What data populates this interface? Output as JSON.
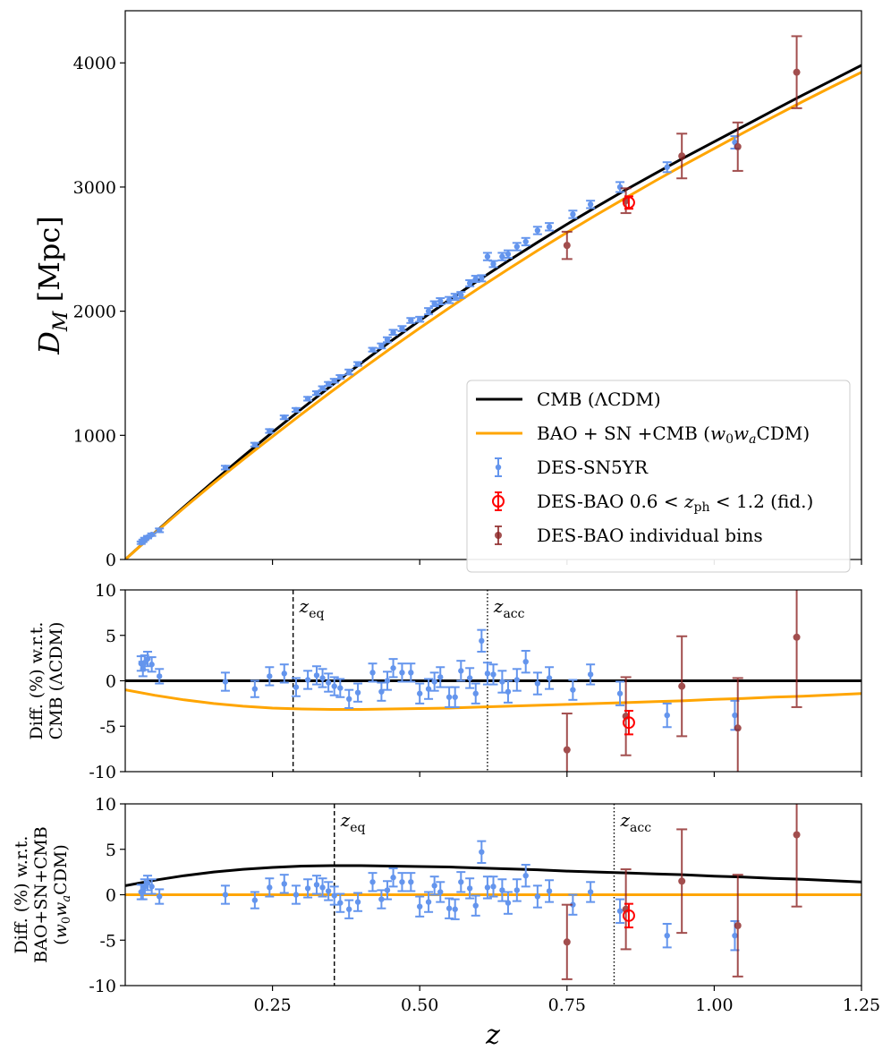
{
  "colors": {
    "cmb": "#000000",
    "fit": "#ffa500",
    "sn": "#6495ed",
    "bao_fid": "#ff0000",
    "bao_bins": "#8b2323"
  },
  "chart_data": [
    {
      "id": "top",
      "type": "scatter",
      "ylabel_main": "D",
      "ylabel_sub": "M",
      "ylabel_unit": "[Mpc]",
      "xlim": [
        0.0,
        1.25
      ],
      "ylim": [
        0,
        4420
      ],
      "yticks": [
        0,
        1000,
        2000,
        3000,
        4000
      ],
      "ytick_labels": [
        "0",
        "1000",
        "2000",
        "3000",
        "4000"
      ],
      "legend": {
        "position": "lower-right",
        "entries": [
          {
            "key": "cmb",
            "label": "CMB (ΛCDM)"
          },
          {
            "key": "fit",
            "label": "BAO + SN +CMB (w0waCDM)"
          },
          {
            "key": "sn",
            "label": "DES-SN5YR"
          },
          {
            "key": "bao_fid",
            "label": "DES-BAO 0.6 < zph < 1.2 (fid.)"
          },
          {
            "key": "bao_bins",
            "label": "DES-BAO individual bins"
          }
        ]
      },
      "cmb_curve": {
        "x": [
          0,
          0.05,
          0.1,
          0.15,
          0.2,
          0.25,
          0.3,
          0.35,
          0.4,
          0.45,
          0.5,
          0.55,
          0.6,
          0.65,
          0.7,
          0.75,
          0.8,
          0.85,
          0.9,
          0.95,
          1.0,
          1.05,
          1.1,
          1.15,
          1.2,
          1.25
        ],
        "y": [
          0,
          215,
          425,
          630,
          830,
          1025,
          1215,
          1400,
          1580,
          1755,
          1925,
          2090,
          2250,
          2405,
          2555,
          2700,
          2840,
          2978,
          3110,
          3240,
          3365,
          3490,
          3615,
          3740,
          3860,
          3980
        ]
      },
      "fit_curve": {
        "x": [
          0,
          0.05,
          0.1,
          0.15,
          0.2,
          0.25,
          0.3,
          0.35,
          0.4,
          0.45,
          0.5,
          0.55,
          0.6,
          0.65,
          0.7,
          0.75,
          0.8,
          0.85,
          0.9,
          0.95,
          1.0,
          1.05,
          1.1,
          1.15,
          1.2,
          1.25
        ],
        "y": [
          0,
          212,
          417,
          615,
          805,
          990,
          1173,
          1352,
          1527,
          1698,
          1864,
          2026,
          2184,
          2338,
          2488,
          2634,
          2776,
          2914,
          3050,
          3182,
          3310,
          3438,
          3564,
          3688,
          3808,
          3925
        ]
      },
      "sn_points": {
        "x": [
          0.027,
          0.03,
          0.033,
          0.038,
          0.045,
          0.058,
          0.17,
          0.22,
          0.245,
          0.27,
          0.29,
          0.31,
          0.325,
          0.335,
          0.345,
          0.355,
          0.365,
          0.38,
          0.395,
          0.42,
          0.435,
          0.445,
          0.455,
          0.47,
          0.485,
          0.5,
          0.515,
          0.525,
          0.535,
          0.55,
          0.56,
          0.57,
          0.585,
          0.595,
          0.605,
          0.615,
          0.625,
          0.64,
          0.65,
          0.665,
          0.68,
          0.7,
          0.72,
          0.76,
          0.79,
          0.84,
          0.92,
          1.035
        ],
        "y": [
          135,
          150,
          165,
          180,
          200,
          235,
          740,
          925,
          1035,
          1145,
          1205,
          1295,
          1340,
          1380,
          1415,
          1440,
          1470,
          1510,
          1575,
          1690,
          1720,
          1770,
          1830,
          1860,
          1925,
          1935,
          2000,
          2060,
          2080,
          2090,
          2115,
          2130,
          2225,
          2260,
          2265,
          2440,
          2380,
          2440,
          2460,
          2520,
          2560,
          2650,
          2680,
          2780,
          2860,
          3000,
          3160,
          3360
        ],
        "err": [
          10,
          10,
          10,
          10,
          10,
          15,
          15,
          15,
          15,
          15,
          15,
          15,
          15,
          15,
          15,
          15,
          15,
          20,
          15,
          15,
          20,
          20,
          20,
          20,
          20,
          20,
          25,
          20,
          25,
          25,
          25,
          25,
          25,
          25,
          25,
          30,
          25,
          30,
          30,
          30,
          30,
          30,
          30,
          30,
          30,
          40,
          40,
          50
        ]
      },
      "bao_fid": {
        "x": 0.855,
        "y": 2875,
        "err": 50
      },
      "bao_bins": {
        "x": [
          0.75,
          0.85,
          0.945,
          1.04,
          1.14
        ],
        "y": [
          2530,
          2890,
          3250,
          3325,
          3925
        ],
        "err": [
          110,
          100,
          180,
          195,
          290
        ]
      }
    },
    {
      "id": "middle",
      "type": "scatter",
      "ylabel_lines": [
        "Diff. (%) w.r.t.",
        "CMB (ΛCDM)"
      ],
      "xlim": [
        0.0,
        1.25
      ],
      "ylim": [
        -10,
        10
      ],
      "yticks": [
        -10,
        -5,
        0,
        5,
        10
      ],
      "ytick_labels": [
        "-10",
        "-5",
        "0",
        "5",
        "10"
      ],
      "annotations": [
        {
          "label": "zeq",
          "main": "z",
          "sub": "eq",
          "x": 0.285,
          "style": "dashed"
        },
        {
          "label": "zacc",
          "main": "z",
          "sub": "acc",
          "x": 0.615,
          "style": "dotted"
        }
      ],
      "cmb_curve": {
        "x": [
          0,
          1.25
        ],
        "y": [
          0,
          0
        ]
      },
      "fit_curve": {
        "x": [
          0,
          0.05,
          0.1,
          0.15,
          0.2,
          0.25,
          0.3,
          0.35,
          0.4,
          0.45,
          0.5,
          0.55,
          0.6,
          0.65,
          0.7,
          0.75,
          0.8,
          0.85,
          0.9,
          0.95,
          1.0,
          1.05,
          1.1,
          1.15,
          1.2,
          1.25
        ],
        "y": [
          -1.0,
          -1.6,
          -2.1,
          -2.5,
          -2.8,
          -3.0,
          -3.1,
          -3.15,
          -3.15,
          -3.1,
          -3.05,
          -3.0,
          -2.9,
          -2.8,
          -2.7,
          -2.6,
          -2.5,
          -2.4,
          -2.3,
          -2.2,
          -2.05,
          -1.95,
          -1.8,
          -1.7,
          -1.55,
          -1.4
        ]
      },
      "sn_points": {
        "x": [
          0.027,
          0.03,
          0.033,
          0.038,
          0.045,
          0.058,
          0.17,
          0.22,
          0.245,
          0.27,
          0.29,
          0.31,
          0.325,
          0.335,
          0.345,
          0.355,
          0.365,
          0.38,
          0.395,
          0.42,
          0.435,
          0.445,
          0.455,
          0.47,
          0.485,
          0.5,
          0.515,
          0.525,
          0.535,
          0.55,
          0.56,
          0.57,
          0.585,
          0.595,
          0.605,
          0.615,
          0.625,
          0.64,
          0.65,
          0.665,
          0.68,
          0.7,
          0.72,
          0.76,
          0.79,
          0.84,
          0.92,
          1.035
        ],
        "y": [
          1.9,
          1.3,
          2.0,
          2.4,
          1.8,
          0.5,
          -0.1,
          -0.9,
          0.5,
          0.8,
          -0.7,
          0.1,
          0.6,
          0.3,
          -0.2,
          -0.6,
          -0.8,
          -2.0,
          -1.3,
          0.9,
          -1.2,
          0.0,
          1.4,
          0.9,
          0.9,
          -1.4,
          -0.9,
          -0.1,
          0.4,
          -1.8,
          -1.8,
          1.1,
          0.3,
          -1.4,
          4.4,
          0.8,
          0.7,
          -0.1,
          -1.2,
          0.1,
          2.1,
          -0.3,
          0.3,
          -1.0,
          0.7,
          -1.4,
          -3.8,
          -3.8
        ],
        "err": [
          0.8,
          0.8,
          0.8,
          0.8,
          0.8,
          0.8,
          1.0,
          0.9,
          1.0,
          1.0,
          1.0,
          1.0,
          1.0,
          1.0,
          1.0,
          1.0,
          1.0,
          1.0,
          1.0,
          1.0,
          1.0,
          1.0,
          1.0,
          1.0,
          1.0,
          1.1,
          1.1,
          1.0,
          1.1,
          1.1,
          1.1,
          1.1,
          1.1,
          1.1,
          1.2,
          1.2,
          1.1,
          1.2,
          1.2,
          1.2,
          1.2,
          1.2,
          1.2,
          1.1,
          1.1,
          1.3,
          1.3,
          1.6
        ]
      },
      "bao_fid": {
        "x": 0.855,
        "y": -4.6,
        "err": 1.3
      },
      "bao_bins": {
        "x": [
          0.75,
          0.85,
          0.945,
          1.04,
          1.14
        ],
        "y": [
          -7.6,
          -3.9,
          -0.6,
          -5.2,
          4.8
        ],
        "err": [
          4.0,
          4.3,
          5.5,
          5.5,
          7.7
        ]
      }
    },
    {
      "id": "bottom",
      "type": "scatter",
      "ylabel_lines": [
        "Diff. (%) w.r.t.",
        "BAO+SN+CMB",
        "(w0waCDM)"
      ],
      "xlabel": "z",
      "xlim": [
        0.0,
        1.25
      ],
      "ylim": [
        -10,
        10
      ],
      "xticks": [
        0.25,
        0.5,
        0.75,
        1.0,
        1.25
      ],
      "xtick_labels": [
        "0.25",
        "0.50",
        "0.75",
        "1.00",
        "1.25"
      ],
      "yticks": [
        -10,
        -5,
        0,
        5,
        10
      ],
      "ytick_labels": [
        "-10",
        "-5",
        "0",
        "5",
        "10"
      ],
      "annotations": [
        {
          "label": "zeq",
          "main": "z",
          "sub": "eq",
          "x": 0.355,
          "style": "dashed"
        },
        {
          "label": "zacc",
          "main": "z",
          "sub": "acc",
          "x": 0.83,
          "style": "dotted"
        }
      ],
      "cmb_curve": {
        "x": [
          0,
          0.05,
          0.1,
          0.15,
          0.2,
          0.25,
          0.3,
          0.35,
          0.4,
          0.45,
          0.5,
          0.55,
          0.6,
          0.65,
          0.7,
          0.75,
          0.8,
          0.85,
          0.9,
          0.95,
          1.0,
          1.05,
          1.1,
          1.15,
          1.2,
          1.25
        ],
        "y": [
          1.0,
          1.6,
          2.1,
          2.5,
          2.8,
          3.0,
          3.15,
          3.2,
          3.2,
          3.15,
          3.1,
          3.05,
          2.95,
          2.85,
          2.75,
          2.6,
          2.5,
          2.4,
          2.3,
          2.2,
          2.05,
          1.95,
          1.8,
          1.7,
          1.55,
          1.4
        ]
      },
      "fit_curve": {
        "x": [
          0,
          1.25
        ],
        "y": [
          0,
          0
        ]
      },
      "sn_points": {
        "x": [
          0.027,
          0.03,
          0.033,
          0.038,
          0.045,
          0.058,
          0.17,
          0.22,
          0.245,
          0.27,
          0.29,
          0.31,
          0.325,
          0.335,
          0.345,
          0.355,
          0.365,
          0.38,
          0.395,
          0.42,
          0.435,
          0.445,
          0.455,
          0.47,
          0.485,
          0.5,
          0.515,
          0.525,
          0.535,
          0.55,
          0.56,
          0.57,
          0.585,
          0.595,
          0.605,
          0.615,
          0.625,
          0.64,
          0.65,
          0.665,
          0.68,
          0.7,
          0.72,
          0.76,
          0.79,
          0.84,
          0.92,
          1.035
        ],
        "y": [
          0.3,
          0.3,
          0.9,
          1.3,
          0.9,
          -0.2,
          0.0,
          -0.6,
          0.8,
          1.2,
          0.0,
          0.7,
          1.1,
          0.8,
          0.4,
          -0.1,
          -0.9,
          -1.6,
          -0.8,
          1.4,
          -0.5,
          0.5,
          1.9,
          1.4,
          1.4,
          -1.3,
          -0.8,
          1.0,
          0.3,
          -1.5,
          -1.6,
          1.4,
          0.7,
          -1.2,
          4.7,
          0.8,
          0.9,
          0.5,
          -0.9,
          0.5,
          2.1,
          -0.2,
          0.4,
          -1.1,
          0.3,
          -1.8,
          -4.5,
          -4.5
        ],
        "err": [
          0.8,
          0.8,
          0.8,
          0.8,
          0.8,
          0.8,
          1.0,
          0.9,
          1.0,
          1.0,
          1.0,
          1.0,
          1.0,
          1.0,
          1.0,
          1.0,
          1.0,
          1.0,
          1.0,
          1.0,
          1.0,
          1.0,
          1.0,
          1.0,
          1.0,
          1.1,
          1.1,
          1.0,
          1.1,
          1.1,
          1.1,
          1.1,
          1.1,
          1.1,
          1.2,
          1.2,
          1.1,
          1.2,
          1.2,
          1.2,
          1.2,
          1.2,
          1.2,
          1.1,
          1.1,
          1.3,
          1.3,
          1.6
        ]
      },
      "bao_fid": {
        "x": 0.855,
        "y": -2.3,
        "err": 1.3
      },
      "bao_bins": {
        "x": [
          0.75,
          0.85,
          0.945,
          1.04,
          1.14
        ],
        "y": [
          -5.2,
          -1.6,
          1.5,
          -3.4,
          6.6
        ],
        "err": [
          4.1,
          4.4,
          5.7,
          5.6,
          7.9
        ]
      }
    }
  ]
}
